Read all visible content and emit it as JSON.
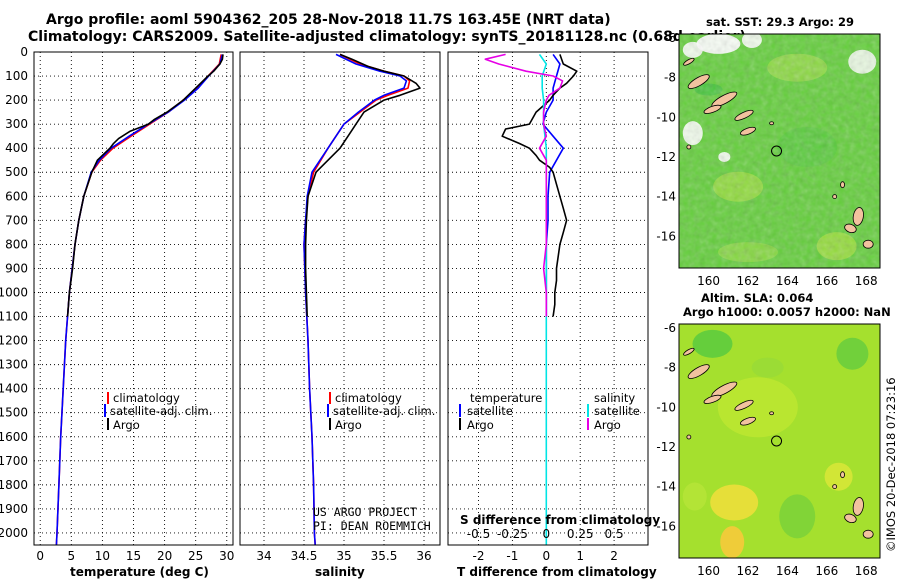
{
  "header": {
    "title_line1": "Argo profile: aoml 5904362_205 28-Nov-2018 11.7S 163.45E (NRT data)",
    "title_line2": "Climatology: CARS2009. Satellite-adjusted climatology: synTS_20181128.nc (0.68d earlier)"
  },
  "colors": {
    "climatology": "#ff0000",
    "satellite": "#0000ff",
    "argo": "#000000",
    "salinity_sat": "#00e5e5",
    "salinity_argo": "#e600e6",
    "land": "#f2c29f"
  },
  "credits": {
    "line1": "US ARGO PROJECT",
    "line2": "PI: DEAN ROEMMICH"
  },
  "watermark": "©IMOS 20-Dec-2018 07:23:16",
  "chart_data": [
    {
      "type": "line",
      "name": "temperature",
      "xlabel": "temperature (deg C)",
      "ylabel": "depth (m)",
      "xlim": [
        -1,
        31
      ],
      "ylim": [
        2050,
        0
      ],
      "xticks": [
        0,
        5,
        10,
        15,
        20,
        25,
        30
      ],
      "yticks": [
        0,
        100,
        200,
        300,
        400,
        500,
        600,
        700,
        800,
        900,
        1000,
        1100,
        1200,
        1300,
        1400,
        1500,
        1600,
        1700,
        1800,
        1900,
        2000
      ],
      "legend": [
        "climatology",
        "satellite-adj. clim.",
        "Argo"
      ],
      "series": [
        {
          "name": "climatology",
          "depth": [
            10,
            50,
            100,
            150,
            200,
            250,
            300,
            350,
            400,
            450,
            500,
            600,
            700,
            800,
            1000,
            1200,
            1400,
            1600,
            1800,
            2000,
            2050
          ],
          "values": [
            29.1,
            28.8,
            27.0,
            25.2,
            23.0,
            20.6,
            17.6,
            14.6,
            11.7,
            9.7,
            8.3,
            7.0,
            6.2,
            5.6,
            4.7,
            4.1,
            3.7,
            3.3,
            3.0,
            2.7,
            2.6
          ]
        },
        {
          "name": "satellite-adj. clim.",
          "depth": [
            10,
            50,
            100,
            150,
            200,
            250,
            300,
            350,
            400,
            450,
            500,
            600,
            700,
            800,
            1000,
            1200,
            1400,
            1600,
            1800,
            2000,
            2050
          ],
          "values": [
            29.3,
            28.9,
            27.1,
            25.4,
            23.2,
            20.6,
            17.4,
            14.3,
            11.4,
            9.5,
            8.2,
            7.0,
            6.2,
            5.6,
            4.7,
            4.1,
            3.7,
            3.3,
            3.0,
            2.7,
            2.6
          ]
        },
        {
          "name": "Argo",
          "depth": [
            10,
            30,
            50,
            80,
            100,
            150,
            200,
            250,
            280,
            300,
            330,
            360,
            380,
            400,
            450,
            500,
            600,
            700,
            800,
            900,
            1000,
            1100
          ],
          "values": [
            29.4,
            29.3,
            28.9,
            27.9,
            27.0,
            25.0,
            23.0,
            20.4,
            18.4,
            17.4,
            14.4,
            12.6,
            11.8,
            11.2,
            9.2,
            8.3,
            7.0,
            6.2,
            5.6,
            5.2,
            4.7,
            4.4
          ]
        }
      ]
    },
    {
      "type": "line",
      "name": "salinity",
      "xlabel": "salinity",
      "ylim": [
        2050,
        0
      ],
      "xlim": [
        33.7,
        36.2
      ],
      "xticks": [
        34,
        34.5,
        35,
        35.5,
        36
      ],
      "legend": [
        "climatology",
        "satellite-adj. clim.",
        "Argo"
      ],
      "series": [
        {
          "name": "climatology",
          "depth": [
            10,
            50,
            80,
            100,
            120,
            150,
            180,
            200,
            250,
            300,
            400,
            500,
            600,
            700,
            800,
            1000,
            1200,
            1400,
            1600,
            1800,
            2000,
            2050
          ],
          "values": [
            34.95,
            35.2,
            35.5,
            35.75,
            35.82,
            35.8,
            35.55,
            35.4,
            35.2,
            35.0,
            34.8,
            34.62,
            34.55,
            34.52,
            34.5,
            34.52,
            34.55,
            34.57,
            34.6,
            34.62,
            34.63,
            34.64
          ]
        },
        {
          "name": "satellite-adj. clim.",
          "depth": [
            10,
            50,
            80,
            100,
            120,
            150,
            180,
            200,
            250,
            300,
            400,
            500,
            600,
            700,
            800,
            1000,
            1200,
            1400,
            1600,
            1800,
            2000,
            2050
          ],
          "values": [
            34.9,
            35.15,
            35.45,
            35.7,
            35.78,
            35.75,
            35.5,
            35.38,
            35.18,
            35.0,
            34.8,
            34.6,
            34.54,
            34.52,
            34.5,
            34.52,
            34.55,
            34.57,
            34.6,
            34.62,
            34.63,
            34.64
          ]
        },
        {
          "name": "Argo",
          "depth": [
            10,
            30,
            60,
            80,
            100,
            130,
            150,
            180,
            200,
            250,
            300,
            350,
            400,
            450,
            500,
            600,
            700,
            800,
            900,
            1000,
            1100
          ],
          "values": [
            34.95,
            35.1,
            35.3,
            35.5,
            35.75,
            35.9,
            35.95,
            35.7,
            35.5,
            35.25,
            35.15,
            35.05,
            34.95,
            34.8,
            34.65,
            34.55,
            34.53,
            34.52,
            34.52,
            34.53,
            34.54
          ]
        }
      ]
    },
    {
      "type": "line",
      "name": "differences",
      "xlabel": "T difference from climatology",
      "xlabel_top": "S difference from climatology",
      "xlim_T": [
        -2.9,
        3.0
      ],
      "xticks_T": [
        -2,
        -1,
        0,
        1,
        2
      ],
      "xticks_S": [
        -0.5,
        -0.25,
        0,
        0.25,
        0.5
      ],
      "xtick_labels_S": [
        "-0.5",
        "-0.25",
        "0",
        "0.25",
        "0.5"
      ],
      "legend_left_title": "temperature",
      "legend_right_title": "salinity",
      "legend_left": [
        "satellite",
        "Argo"
      ],
      "legend_right": [
        "satellite",
        "Argo"
      ],
      "series": [
        {
          "name": "T satellite",
          "depth": [
            10,
            50,
            100,
            150,
            200,
            250,
            300,
            350,
            400,
            450,
            500,
            600,
            700,
            800,
            900,
            1000,
            1100
          ],
          "values": [
            0.2,
            0.4,
            0.3,
            0.2,
            0.2,
            0.0,
            -0.1,
            0.2,
            0.5,
            0.3,
            0.1,
            0.05,
            0.05,
            0.0,
            0.0,
            0.0,
            0.0
          ]
        },
        {
          "name": "T Argo",
          "depth": [
            10,
            50,
            80,
            100,
            130,
            150,
            180,
            200,
            250,
            300,
            320,
            350,
            380,
            400,
            430,
            450,
            480,
            500,
            550,
            600,
            650,
            700,
            750,
            800,
            850,
            900,
            950,
            1000,
            1050,
            1100
          ],
          "values": [
            0.4,
            0.5,
            0.9,
            0.8,
            0.6,
            0.4,
            0.2,
            0.1,
            -0.3,
            -0.5,
            -1.2,
            -1.3,
            -0.8,
            -0.5,
            -0.3,
            -0.2,
            0.1,
            0.2,
            0.3,
            0.4,
            0.5,
            0.6,
            0.5,
            0.4,
            0.35,
            0.3,
            0.3,
            0.25,
            0.25,
            0.2
          ]
        },
        {
          "name": "S satellite",
          "depth": [
            10,
            50,
            100,
            150,
            200,
            300,
            400,
            500,
            600,
            800,
            1000,
            1200,
            1400,
            1600,
            1800,
            2000,
            2050
          ],
          "values": [
            -0.05,
            0.0,
            -0.03,
            -0.03,
            -0.02,
            -0.02,
            0.0,
            0.0,
            0.0,
            0.0,
            0.0,
            0.0,
            0.0,
            0.0,
            0.0,
            0.0,
            0.0
          ]
        },
        {
          "name": "S Argo",
          "depth": [
            10,
            30,
            50,
            80,
            100,
            120,
            150,
            180,
            200,
            250,
            300,
            350,
            400,
            450,
            500,
            550,
            600,
            700,
            800,
            900,
            1000,
            1100
          ],
          "values": [
            -0.3,
            -0.45,
            -0.35,
            -0.15,
            0.05,
            0.12,
            0.1,
            0.02,
            0.0,
            -0.02,
            -0.02,
            0.0,
            -0.05,
            0.0,
            0.0,
            0.0,
            0.0,
            0.0,
            0.0,
            -0.02,
            0.0,
            0.0
          ]
        }
      ]
    },
    {
      "type": "heatmap",
      "name": "sst_map",
      "title": "sat. SST: 29.3 Argo: 29",
      "xticks": [
        160,
        162,
        164,
        166,
        168
      ],
      "yticks": [
        -6,
        -8,
        -10,
        -12,
        -14,
        -16
      ],
      "xlim": [
        158.5,
        168.7
      ],
      "ylim": [
        -17.6,
        -5.8
      ],
      "argo_position": [
        163.45,
        -11.7
      ]
    },
    {
      "type": "heatmap",
      "name": "sla_map",
      "title_line1": "Altim. SLA: 0.064",
      "title_line2": "Argo h1000: 0.0057 h2000: NaN",
      "xticks": [
        160,
        162,
        164,
        166,
        168
      ],
      "yticks": [
        -6,
        -8,
        -10,
        -12,
        -14,
        -16
      ],
      "xlim": [
        158.5,
        168.7
      ],
      "ylim": [
        -17.6,
        -5.8
      ],
      "argo_position": [
        163.45,
        -11.7
      ]
    }
  ]
}
